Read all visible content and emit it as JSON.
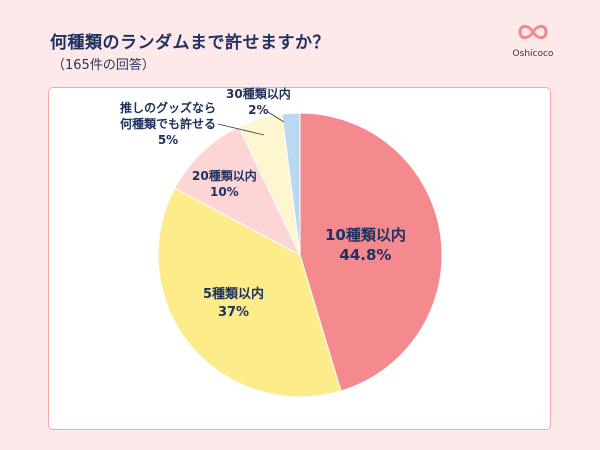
{
  "header": {
    "title": "何種類のランダムまで許せますか？",
    "subtitle": "（165件の回答）"
  },
  "logo": {
    "icon": "infinity-heart-icon",
    "text": "Oshicoco",
    "color": "#f08a8f"
  },
  "chart_data": {
    "type": "pie",
    "title": "何種類のランダムまで許せますか？",
    "subtitle": "（165件の回答）",
    "categories": [
      "10種類以内",
      "5種類以内",
      "20種類以内",
      "推しのグッズなら何種類でも許せる",
      "30種類以内"
    ],
    "values": [
      44.8,
      37,
      10,
      5,
      2
    ],
    "colors": [
      "#f4898e",
      "#fdec8a",
      "#fdd5d5",
      "#fef6cf",
      "#b9d8f1"
    ],
    "start_angle": "12 o'clock, clockwise",
    "labels": [
      {
        "name": "10種類以内",
        "pct": "44.8%"
      },
      {
        "name": "5種類以内",
        "pct": "37%"
      },
      {
        "name": "20種類以内",
        "pct": "10%"
      },
      {
        "name": "推しのグッズなら何種類でも許せる",
        "line1": "推しのグッズなら",
        "line2": "何種類でも許せる",
        "pct": "5%"
      },
      {
        "name": "30種類以内",
        "pct": "2%"
      }
    ],
    "legend": "none (inline labels)"
  }
}
